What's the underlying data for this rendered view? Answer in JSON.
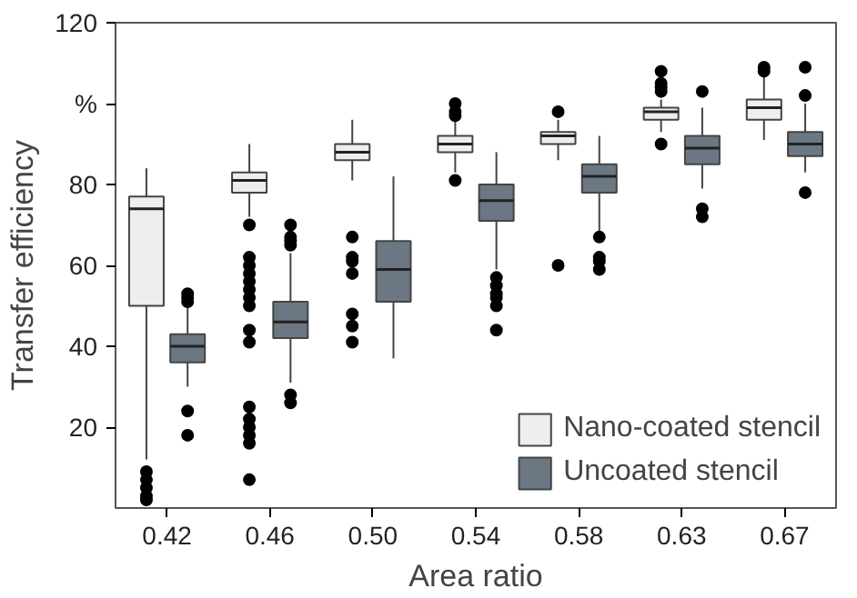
{
  "chart_data": {
    "type": "box",
    "xlabel": "Area ratio",
    "ylabel": "Transfer efficiency",
    "categories": [
      "0.42",
      "0.46",
      "0.50",
      "0.54",
      "0.58",
      "0.63",
      "0.67"
    ],
    "ylim": [
      0,
      120
    ],
    "yticks": [
      20,
      40,
      60,
      80,
      {
        "value": 100,
        "label": "%"
      },
      120
    ],
    "grid": false,
    "legend": "bottom right",
    "marker": "circle",
    "series": [
      {
        "name": "Nano-coated stencil",
        "color": "#eeeef0",
        "boxes": [
          {
            "low": 12,
            "q1": 50,
            "median": 74,
            "q3": 77,
            "high": 84,
            "outliers": [
              9,
              7,
              5,
              3,
              2
            ]
          },
          {
            "low": 72,
            "q1": 78,
            "median": 81,
            "q3": 83,
            "high": 90,
            "outliers": [
              70,
              62,
              60,
              58,
              56,
              54,
              52,
              50,
              44,
              41,
              25,
              22,
              20,
              18,
              16,
              7
            ]
          },
          {
            "low": 81,
            "q1": 86,
            "median": 88,
            "q3": 90,
            "high": 96,
            "outliers": [
              67,
              62,
              61,
              58,
              48,
              45,
              41
            ]
          },
          {
            "low": 83,
            "q1": 88,
            "median": 90,
            "q3": 92,
            "high": 96,
            "outliers": [
              100,
              98,
              97,
              81
            ]
          },
          {
            "low": 86,
            "q1": 90,
            "median": 92,
            "q3": 93,
            "high": 96,
            "outliers": [
              98,
              60
            ]
          },
          {
            "low": 93,
            "q1": 96,
            "median": 98,
            "q3": 99,
            "high": 101,
            "outliers": [
              108,
              105,
              104,
              103,
              90
            ]
          },
          {
            "low": 91,
            "q1": 96,
            "median": 99,
            "q3": 101,
            "high": 107,
            "outliers": [
              109,
              108
            ]
          }
        ]
      },
      {
        "name": "Uncoated stencil",
        "color": "#6b7783",
        "boxes": [
          {
            "low": 30,
            "q1": 36,
            "median": 40,
            "q3": 43,
            "high": 50,
            "outliers": [
              53,
              52,
              51,
              24,
              18
            ]
          },
          {
            "low": 31,
            "q1": 42,
            "median": 46,
            "q3": 51,
            "high": 63,
            "outliers": [
              70,
              67,
              66,
              65,
              28,
              26
            ]
          },
          {
            "low": 37,
            "q1": 51,
            "median": 59,
            "q3": 66,
            "high": 82
          },
          {
            "low": 59,
            "q1": 71,
            "median": 76,
            "q3": 80,
            "high": 88,
            "outliers": [
              57,
              55,
              53,
              52,
              50,
              44
            ]
          },
          {
            "low": 68,
            "q1": 78,
            "median": 82,
            "q3": 85,
            "high": 92,
            "outliers": [
              67,
              62,
              61,
              59
            ]
          },
          {
            "low": 79,
            "q1": 85,
            "median": 89,
            "q3": 92,
            "high": 99,
            "outliers": [
              103,
              74,
              72
            ]
          },
          {
            "low": 83,
            "q1": 87,
            "median": 90,
            "q3": 93,
            "high": 100,
            "outliers": [
              109,
              102,
              78
            ]
          }
        ]
      }
    ]
  }
}
